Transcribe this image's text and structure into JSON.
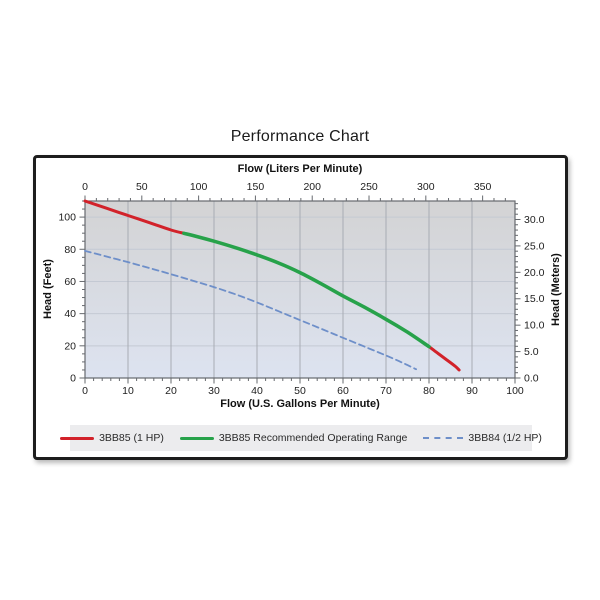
{
  "title": "Performance Chart",
  "colors": {
    "plot_bg_top": "#d3d3d4",
    "plot_bg_bottom": "#dde3f0",
    "grid_vertical": "#a8acb4",
    "grid_horizontal": "#c4c9d3",
    "frame": "#66696e",
    "tick_text": "#1e1e1e",
    "legend_bg": "#ececee",
    "red": "#d2222a",
    "green": "#27a24a",
    "blue": "#6e8fc9"
  },
  "chart_data": {
    "type": "line",
    "title": "Performance Chart",
    "axes": {
      "top": {
        "label": "Flow (Liters Per Minute)",
        "min": 0,
        "max": 378.5,
        "minor_step": 10,
        "major_ticks": [
          {
            "value": 0,
            "label": "0"
          },
          {
            "value": 50,
            "label": "50"
          },
          {
            "value": 100,
            "label": "100"
          },
          {
            "value": 150,
            "label": "150"
          },
          {
            "value": 200,
            "label": "200"
          },
          {
            "value": 250,
            "label": "250"
          },
          {
            "value": 300,
            "label": "300"
          },
          {
            "value": 350,
            "label": "350"
          }
        ]
      },
      "bottom": {
        "label": "Flow (U.S. Gallons Per Minute)",
        "min": 0,
        "max": 100,
        "minor_step": 2,
        "major_ticks": [
          {
            "value": 0,
            "label": "0"
          },
          {
            "value": 10,
            "label": "10"
          },
          {
            "value": 20,
            "label": "20"
          },
          {
            "value": 30,
            "label": "30"
          },
          {
            "value": 40,
            "label": "40"
          },
          {
            "value": 50,
            "label": "50"
          },
          {
            "value": 60,
            "label": "60"
          },
          {
            "value": 70,
            "label": "70"
          },
          {
            "value": 80,
            "label": "80"
          },
          {
            "value": 90,
            "label": "90"
          },
          {
            "value": 100,
            "label": "100"
          }
        ]
      },
      "left": {
        "label": "Head (Feet)",
        "min": 0,
        "max": 110,
        "minor_step": 5,
        "major_ticks": [
          {
            "value": 0,
            "label": "0"
          },
          {
            "value": 20,
            "label": "20"
          },
          {
            "value": 40,
            "label": "40"
          },
          {
            "value": 60,
            "label": "60"
          },
          {
            "value": 80,
            "label": "80"
          },
          {
            "value": 100,
            "label": "100"
          }
        ]
      },
      "right": {
        "label": "Head (Meters)",
        "min": 0,
        "max": 33.5,
        "minor_step": 1,
        "major_ticks": [
          {
            "value": 0,
            "label": "0.0"
          },
          {
            "value": 5,
            "label": "5.0"
          },
          {
            "value": 10,
            "label": "10.0"
          },
          {
            "value": 15,
            "label": "15.0"
          },
          {
            "value": 20,
            "label": "20.0"
          },
          {
            "value": 25,
            "label": "25.0"
          },
          {
            "value": 30,
            "label": "30.0"
          }
        ]
      }
    },
    "grid": {
      "vertical_values_gal": [
        10,
        20,
        30,
        40,
        50,
        60,
        70,
        80,
        90
      ],
      "horizontal_values_ft": [
        20,
        40,
        60,
        80,
        100
      ]
    },
    "series": [
      {
        "id": "3bb85-1hp",
        "label": "3BB85 (1 HP)",
        "color": "#d2222a",
        "dash": "none",
        "width": 3,
        "segments": [
          [
            [
              0,
              110
            ],
            [
              5,
              105.5
            ],
            [
              10,
              101
            ],
            [
              15,
              96.5
            ],
            [
              20,
              92
            ],
            [
              23,
              89.9
            ]
          ],
          [
            [
              80,
              19.5
            ],
            [
              82,
              15.5
            ],
            [
              84,
              11.5
            ],
            [
              86,
              7.5
            ],
            [
              87,
              5
            ]
          ]
        ]
      },
      {
        "id": "3bb85-recommended-range",
        "label": "3BB85 Recommended Operating Range",
        "color": "#27a24a",
        "dash": "none",
        "width": 3.6,
        "segments": [
          [
            [
              23,
              89.9
            ],
            [
              25,
              88.6
            ],
            [
              30,
              85
            ],
            [
              35,
              81
            ],
            [
              40,
              76.5
            ],
            [
              45,
              71.5
            ],
            [
              50,
              65.5
            ],
            [
              55,
              58.5
            ],
            [
              60,
              51
            ],
            [
              65,
              44
            ],
            [
              70,
              36.5
            ],
            [
              75,
              28.5
            ],
            [
              80,
              19.5
            ]
          ]
        ]
      },
      {
        "id": "3bb84-half-hp",
        "label": "3BB84 (1/2 HP)",
        "color": "#6e8fc9",
        "dash": "6,4",
        "width": 1.8,
        "segments": [
          [
            [
              0,
              79
            ],
            [
              5,
              75.5
            ],
            [
              10,
              72
            ],
            [
              15,
              68.3
            ],
            [
              20,
              64.5
            ],
            [
              25,
              60.5
            ],
            [
              30,
              56.5
            ],
            [
              35,
              52
            ],
            [
              40,
              47
            ],
            [
              45,
              41.5
            ],
            [
              50,
              36
            ],
            [
              55,
              30.5
            ],
            [
              60,
              25
            ],
            [
              65,
              19.5
            ],
            [
              70,
              14
            ],
            [
              73,
              10.5
            ],
            [
              75,
              8
            ],
            [
              77,
              5.5
            ]
          ]
        ]
      }
    ],
    "legend": [
      {
        "label": "3BB85 (1 HP)",
        "swatch": "solid",
        "color": "#d2222a"
      },
      {
        "label": "3BB85 Recommended Operating Range",
        "swatch": "solid",
        "color": "#27a24a"
      },
      {
        "label": "3BB84 (1/2 HP)",
        "swatch": "dashed",
        "color": "#6e8fc9"
      }
    ]
  }
}
